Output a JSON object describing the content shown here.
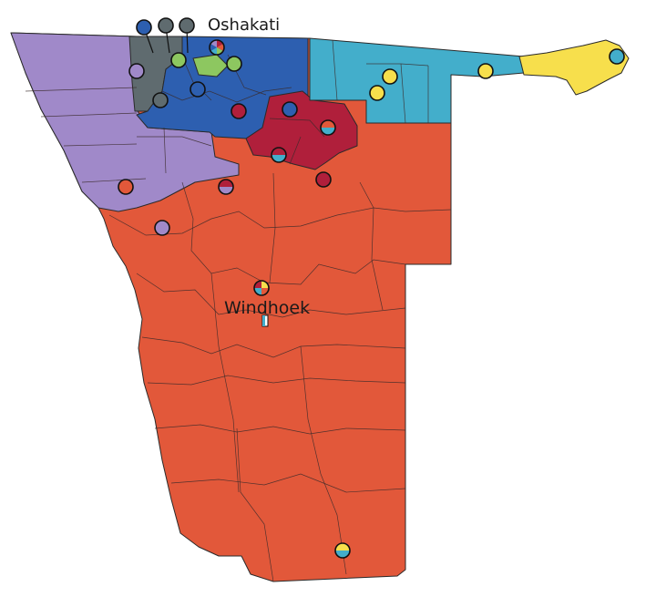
{
  "map": {
    "labels": {
      "oshakati": "Oshakati",
      "windhoek": "Windhoek"
    },
    "colors": {
      "red_orange": "#e2583a",
      "lilac": "#a089c9",
      "royal_blue": "#2d5fb0",
      "crimson": "#b01f3b",
      "teal": "#43aecb",
      "yellow": "#f7df4c",
      "slate": "#5f6b6f",
      "green": "#8dc760",
      "outline": "#2a2a2a",
      "background": "#ffffff"
    },
    "marker_colors": [
      "crimson",
      "red_orange",
      "lilac",
      "royal_blue",
      "teal",
      "yellow",
      "slate",
      "green"
    ]
  }
}
